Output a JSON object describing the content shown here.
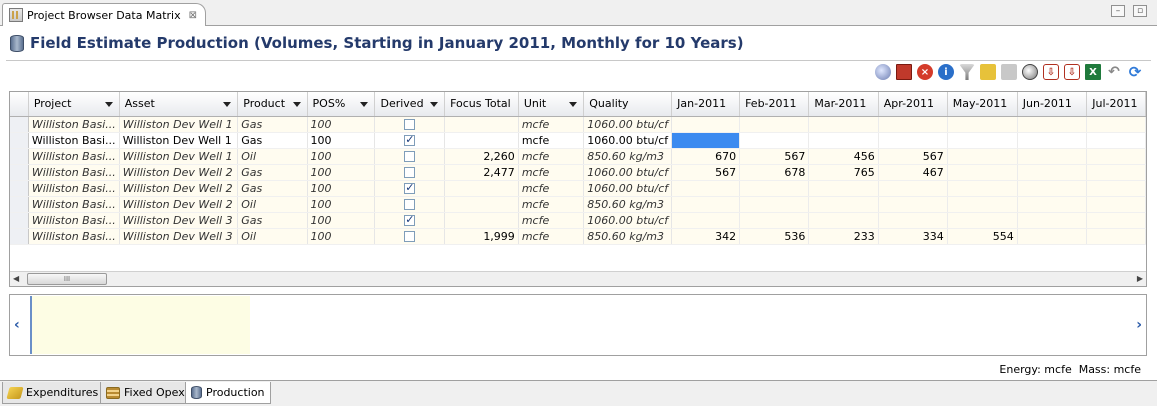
{
  "view_tab": {
    "title": "Project Browser Data Matrix",
    "close": "⊠"
  },
  "window_controls": {
    "minimize": "–",
    "maximize": "▫"
  },
  "page_title": "Field Estimate Production (Volumes, Starting in January 2011, Monthly for 10 Years)",
  "toolbar": {
    "icons": [
      "search-icon",
      "report-icon",
      "stop-icon",
      "info-icon",
      "filter-icon",
      "edit-icon",
      "edit-disabled-icon",
      "zoom-icon",
      "import-icon",
      "export-icon",
      "excel-icon",
      "undo-icon",
      "refresh-icon"
    ]
  },
  "grid": {
    "columns": [
      "Project",
      "Asset",
      "Product",
      "POS%",
      "Derived",
      "Focus Total",
      "Unit",
      "Quality",
      "Jan-2011",
      "Feb-2011",
      "Mar-2011",
      "Apr-2011",
      "May-2011",
      "Jun-2011",
      "Jul-2011"
    ],
    "dropdown_columns": [
      "Project",
      "Asset",
      "Product",
      "POS%",
      "Derived",
      "Unit"
    ],
    "rows": [
      {
        "style": "pink",
        "project": "Williston Basi...",
        "asset": "Williston Dev Well 1",
        "product": "Gas",
        "pos": "100",
        "derived": false,
        "focus_total": "",
        "unit": "mcfe",
        "quality": "1060.00 btu/cf",
        "months": [
          "",
          "",
          "",
          "",
          "",
          "",
          ""
        ]
      },
      {
        "style": "white",
        "project": "Williston Basi...",
        "asset": "Williston Dev Well 1",
        "product": "Gas",
        "pos": "100",
        "derived": true,
        "focus_total": "",
        "unit": "mcfe",
        "quality": "1060.00 btu/cf",
        "months": [
          "",
          "",
          "",
          "",
          "",
          "",
          ""
        ]
      },
      {
        "style": "pink",
        "project": "Williston Basi...",
        "asset": "Williston Dev Well 1",
        "product": "Oil",
        "pos": "100",
        "derived": false,
        "focus_total": "2,260",
        "unit": "mcfe",
        "quality": "850.60 kg/m3",
        "months": [
          "670",
          "567",
          "456",
          "567",
          "",
          "",
          ""
        ]
      },
      {
        "style": "pink",
        "project": "Williston Basi...",
        "asset": "Williston Dev Well 2",
        "product": "Gas",
        "pos": "100",
        "derived": false,
        "focus_total": "2,477",
        "unit": "mcfe",
        "quality": "1060.00 btu/cf",
        "months": [
          "567",
          "678",
          "765",
          "467",
          "",
          "",
          ""
        ]
      },
      {
        "style": "pink",
        "project": "Williston Basi...",
        "asset": "Williston Dev Well 2",
        "product": "Gas",
        "pos": "100",
        "derived": true,
        "focus_total": "",
        "unit": "mcfe",
        "quality": "1060.00 btu/cf",
        "months": [
          "",
          "",
          "",
          "",
          "",
          "",
          ""
        ]
      },
      {
        "style": "pink",
        "project": "Williston Basi...",
        "asset": "Williston Dev Well 2",
        "product": "Oil",
        "pos": "100",
        "derived": false,
        "focus_total": "",
        "unit": "mcfe",
        "quality": "850.60 kg/m3",
        "months": [
          "",
          "",
          "",
          "",
          "",
          "",
          ""
        ]
      },
      {
        "style": "pink",
        "project": "Williston Basi...",
        "asset": "Williston Dev Well 3",
        "product": "Gas",
        "pos": "100",
        "derived": true,
        "focus_total": "",
        "unit": "mcfe",
        "quality": "1060.00 btu/cf",
        "months": [
          "",
          "",
          "",
          "",
          "",
          "",
          ""
        ]
      },
      {
        "style": "pink",
        "project": "Williston Basi...",
        "asset": "Williston Dev Well 3",
        "product": "Oil",
        "pos": "100",
        "derived": false,
        "focus_total": "1,999",
        "unit": "mcfe",
        "quality": "850.60 kg/m3",
        "months": [
          "342",
          "536",
          "233",
          "334",
          "554",
          "",
          ""
        ]
      }
    ],
    "selected_cell": {
      "row": 1,
      "column": "Jan-2011"
    },
    "scroll_thumb_label": "III"
  },
  "units_status": "Energy: mcfe  Mass: mcfe",
  "bottom_tabs": [
    {
      "label": "Expenditures",
      "icon": "expenditures-icon",
      "active": false
    },
    {
      "label": "Fixed Opex",
      "icon": "fixed-opex-icon",
      "active": false
    },
    {
      "label": "Production",
      "icon": "database-icon",
      "active": true
    }
  ]
}
